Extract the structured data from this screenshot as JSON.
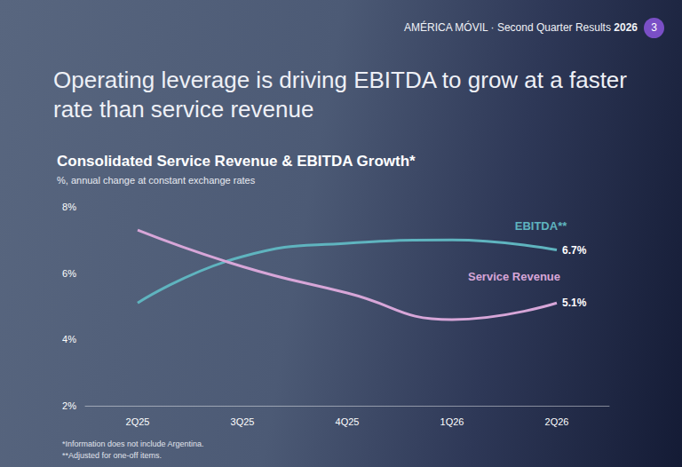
{
  "header": "AMÉRICA MÓVIL · Second Quarter Results 2026",
  "page": 3,
  "headline": "Operating leverage is driving EBITDA to grow at a faster rate than service revenue",
  "notes": [
    "*Information does not include Argentina.",
    "**Adjusted  for one-off items."
  ],
  "chart_data": {
    "type": "line",
    "title": "Consolidated Service Revenue & EBITDA Growth*",
    "subtitle": "%, annual change at constant exchange rates",
    "categories": [
      "2Q25",
      "3Q25",
      "4Q25",
      "1Q26",
      "2Q26"
    ],
    "series": [
      {
        "name": "EBITDA**",
        "color": "#5fb4bf",
        "values": [
          5.1,
          6.5,
          6.9,
          7.0,
          6.7
        ],
        "value_labels": [
          null,
          null,
          null,
          null,
          "6.7%"
        ]
      },
      {
        "name": "Service Revenue",
        "color": "#d7a6d8",
        "values": [
          7.3,
          6.2,
          5.4,
          4.6,
          5.1
        ],
        "value_labels": [
          null,
          null,
          null,
          null,
          "5.1%"
        ]
      }
    ],
    "ylim": [
      2,
      8
    ],
    "yticks": [
      {
        "value": 2,
        "label": "2%"
      },
      {
        "value": 4,
        "label": "4%"
      },
      {
        "value": 6,
        "label": "6%"
      },
      {
        "value": 8,
        "label": "8%"
      }
    ],
    "grid": false,
    "data_labels": true,
    "marker": "none",
    "line_style": "solid"
  }
}
